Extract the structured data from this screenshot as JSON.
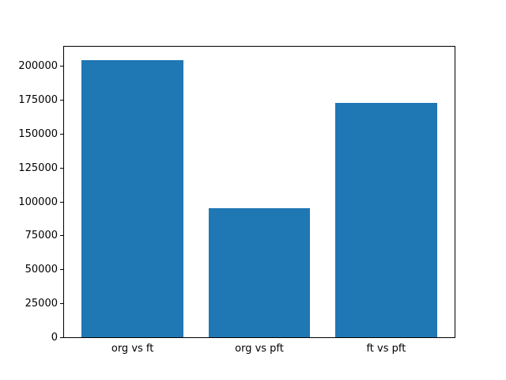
{
  "chart_data": {
    "type": "bar",
    "categories": [
      "org vs ft",
      "org vs pft",
      "ft vs pft"
    ],
    "values": [
      204000,
      95000,
      173000
    ],
    "title": "",
    "xlabel": "",
    "ylabel": "",
    "ylim": [
      0,
      214200
    ],
    "yticks": [
      0,
      25000,
      50000,
      75000,
      100000,
      125000,
      150000,
      175000,
      200000
    ],
    "bar_color": "#1f77b4",
    "grid": false,
    "legend": false
  }
}
